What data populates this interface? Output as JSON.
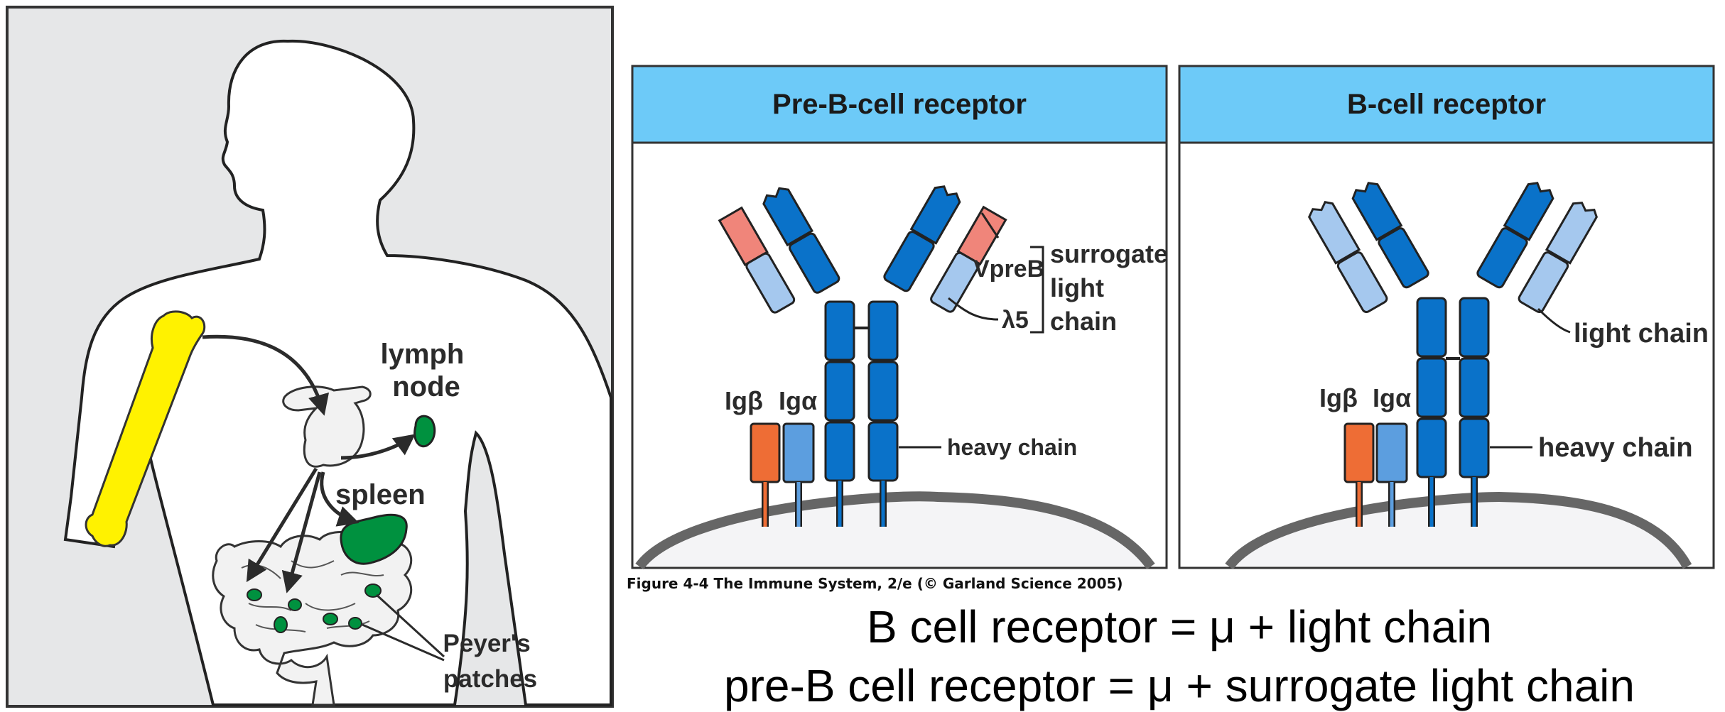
{
  "body_diagram": {
    "labels": {
      "lymph_node": [
        "lymph",
        "node"
      ],
      "spleen": "spleen",
      "peyers_patches": [
        "Peyer's",
        "patches"
      ]
    },
    "colors": {
      "background": "#e6e7e8",
      "bone": "#fff200",
      "organ": "#00913f",
      "body": "#ffffff"
    }
  },
  "panels": {
    "pre_b": {
      "title": "Pre-B-cell receptor",
      "vpreb": "VpreB",
      "lambda5": "λ5",
      "surrogate": [
        "surrogate",
        "light",
        "chain"
      ],
      "ig_beta": "Igβ",
      "ig_alpha": "Igα",
      "heavy_chain": "heavy chain"
    },
    "b_cell": {
      "title": "B-cell receptor",
      "light_chain": "light chain",
      "ig_beta": "Igβ",
      "ig_alpha": "Igα",
      "heavy_chain": "heavy chain"
    },
    "colors": {
      "header": "#6dcaf8",
      "heavy": "#0a72c9",
      "light": "#a5c8ee",
      "vpreb": "#f0857a",
      "ig_beta": "#ee6d35",
      "ig_alpha": "#5c9edf"
    }
  },
  "figure_caption": "Figure 4-4  The Immune System, 2/e (© Garland Science 2005)",
  "equations": {
    "line1": "B cell receptor = μ  + light chain",
    "line2": "pre-B cell receptor = μ + surrogate light chain"
  }
}
